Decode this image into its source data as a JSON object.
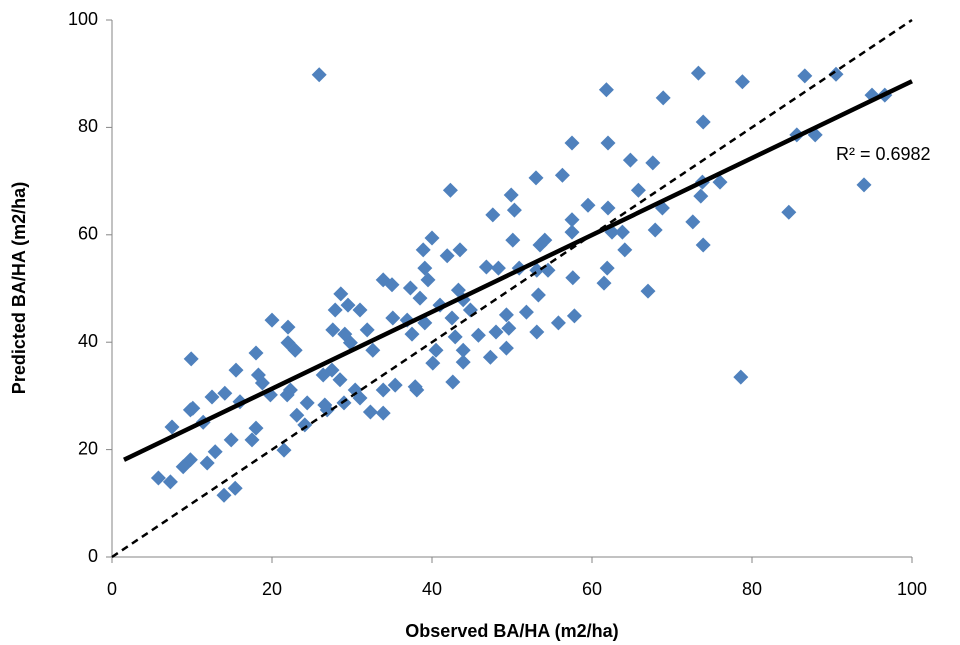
{
  "chart_data": {
    "type": "scatter",
    "x_label": "Observed BA/HA (m2/ha)",
    "y_label": "Predicted BA/HA (m2/ha)",
    "annotation": "R² = 0.6982",
    "color": "#4f81bd",
    "xlim": [
      0,
      100
    ],
    "ylim": [
      0,
      100
    ],
    "xticks": [
      0,
      20,
      40,
      60,
      80,
      100
    ],
    "yticks": [
      0,
      20,
      40,
      60,
      80,
      100
    ],
    "grid": false,
    "x": [
      25.9,
      73.3,
      86.6,
      90.5,
      61.8,
      78.8,
      68.9,
      95,
      96.6,
      73.9,
      85.6,
      87.9,
      57.5,
      62,
      42.3,
      53,
      56.3,
      64.8,
      67.6,
      65.8,
      73.8,
      76,
      73.6,
      94,
      49.9,
      47.6,
      50.3,
      57.5,
      59.5,
      62,
      68.8,
      72.6,
      84.6,
      40,
      50.1,
      53.5,
      54.1,
      57.5,
      62.5,
      63.8,
      67.9,
      64.1,
      73.9,
      38.9,
      43.5,
      41.9,
      46.8,
      48.3,
      50.9,
      53.1,
      54.5,
      61.9,
      39.1,
      33.9,
      35,
      37.3,
      39.5,
      43.3,
      53.3,
      57.6,
      61.5,
      67,
      28.6,
      29.5,
      27.9,
      31,
      38.5,
      41,
      43.9,
      44.8,
      35.1,
      36.9,
      39.1,
      42.5,
      49.3,
      51.8,
      57.8,
      20,
      22,
      27.6,
      29.1,
      31.9,
      37.5,
      42.9,
      45.8,
      48,
      49.6,
      53.1,
      55.8,
      22,
      22.9,
      29.8,
      32.6,
      40.5,
      43.9,
      49.3,
      9.9,
      18,
      43.9,
      40.1,
      47.3,
      15.5,
      18.3,
      18.8,
      27.5,
      26.4,
      28.5,
      42.6,
      33.9,
      35.4,
      30.4,
      19.8,
      21.9,
      22.3,
      12.5,
      14.1,
      16,
      24.4,
      26.6,
      29,
      31,
      38.1,
      37.9,
      9.8,
      10.1,
      11.4,
      26.9,
      23.1,
      32.3,
      33.9,
      7.5,
      18,
      24.1,
      14.9,
      17.5,
      21.5,
      12.9,
      9.8,
      8.9,
      11.9,
      5.8,
      7.3,
      15.4,
      14,
      78.6
    ],
    "y": [
      89.8,
      90.1,
      89.6,
      89.9,
      87,
      88.5,
      85.5,
      86,
      86,
      81,
      78.6,
      78.6,
      77.1,
      77.1,
      68.3,
      70.6,
      71.1,
      73.9,
      73.4,
      68.3,
      69.8,
      69.8,
      67.2,
      69.3,
      67.4,
      63.7,
      64.6,
      62.8,
      65.5,
      65,
      65,
      62.4,
      64.2,
      59.4,
      59,
      58.1,
      59,
      60.5,
      60.5,
      60.5,
      60.9,
      57.2,
      58.1,
      57.2,
      57.2,
      56.1,
      54,
      53.8,
      53.8,
      53.4,
      53.4,
      53.8,
      53.8,
      51.6,
      50.7,
      50.1,
      51.6,
      49.7,
      48.8,
      52,
      51,
      49.5,
      49,
      46.9,
      46,
      46,
      48.2,
      46.9,
      47.9,
      46,
      44.5,
      44.1,
      43.6,
      44.5,
      45.1,
      45.6,
      44.9,
      44.1,
      42.8,
      42.3,
      41.5,
      42.3,
      41.5,
      41,
      41.3,
      41.9,
      42.6,
      41.9,
      43.6,
      39.9,
      38.5,
      39.9,
      38.5,
      38.5,
      38.5,
      38.9,
      36.9,
      38,
      36.3,
      36.1,
      37.2,
      34.8,
      33.9,
      32.4,
      34.8,
      33.9,
      33,
      32.6,
      31.1,
      32,
      31.1,
      30.2,
      30.2,
      31.1,
      29.8,
      30.5,
      28.9,
      28.7,
      28.3,
      28.7,
      29.6,
      31.1,
      31.7,
      27.4,
      27.7,
      25.1,
      27.4,
      26.4,
      27,
      26.8,
      24.2,
      24,
      24.6,
      21.8,
      21.8,
      19.9,
      19.6,
      18.1,
      16.8,
      17.5,
      14.7,
      14,
      12.8,
      11.5,
      33.5
    ],
    "trendline": {
      "x": [
        1.5,
        100
      ],
      "y": [
        18.1,
        88.6
      ]
    },
    "reference_line": {
      "x": [
        0,
        100
      ],
      "y": [
        0,
        100
      ]
    }
  }
}
